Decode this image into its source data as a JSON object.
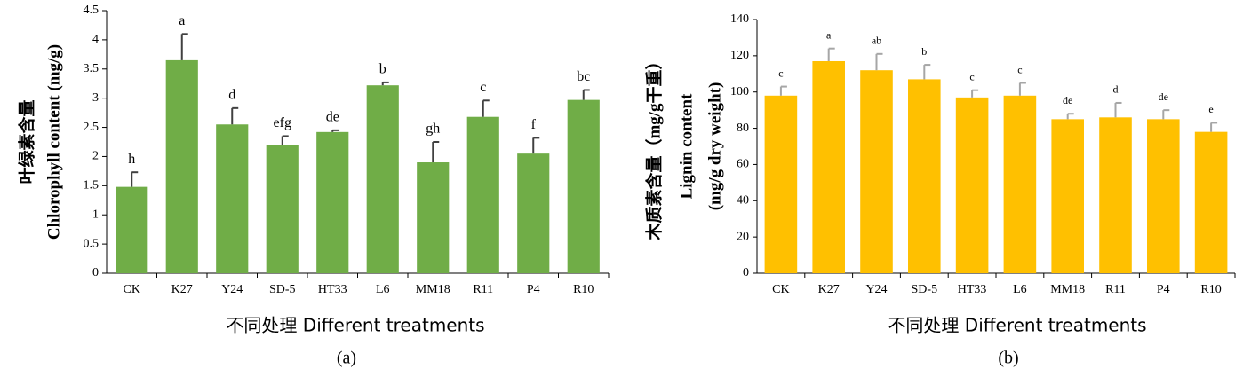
{
  "chart_data": [
    {
      "type": "bar",
      "ylabel": [
        "叶绿素含量",
        "Chlorophyll content (mg/g)"
      ],
      "xlabel": "不同处理 Different treatments",
      "caption": "(a)",
      "categories": [
        "CK",
        "K27",
        "Y24",
        "SD-5",
        "HT33",
        "L6",
        "MM18",
        "R11",
        "P4",
        "R10"
      ],
      "values": [
        1.48,
        3.65,
        2.55,
        2.2,
        2.42,
        3.22,
        1.9,
        2.68,
        2.05,
        2.97
      ],
      "errors": [
        0.25,
        0.45,
        0.28,
        0.15,
        0.03,
        0.05,
        0.35,
        0.28,
        0.27,
        0.17
      ],
      "significance": [
        "h",
        "a",
        "d",
        "efg",
        "de",
        "b",
        "gh",
        "c",
        "f",
        "bc"
      ],
      "color": "#70ad47",
      "error_color": "#404040",
      "ylim": [
        0,
        4.5
      ],
      "yticks": [
        0,
        0.5,
        1,
        1.5,
        2,
        2.5,
        3,
        3.5,
        4,
        4.5
      ]
    },
    {
      "type": "bar",
      "ylabel": [
        "木质素含量（mg/g干重）",
        "Lignin content",
        "(mg/g dry weight)"
      ],
      "xlabel": "不同处理 Different treatments",
      "caption": "(b)",
      "categories": [
        "CK",
        "K27",
        "Y24",
        "SD-5",
        "HT33",
        "L6",
        "MM18",
        "R11",
        "P4",
        "R10"
      ],
      "values": [
        98,
        117,
        112,
        107,
        97,
        98,
        85,
        86,
        85,
        78
      ],
      "errors": [
        5,
        7,
        9,
        8,
        4,
        7,
        3,
        8,
        5,
        5
      ],
      "significance": [
        "c",
        "a",
        "ab",
        "b",
        "c",
        "c",
        "de",
        "d",
        "de",
        "e"
      ],
      "color": "#ffc000",
      "error_color": "#a6a6a6",
      "ylim": [
        0,
        140
      ],
      "yticks": [
        0,
        20,
        40,
        60,
        80,
        100,
        120,
        140
      ]
    }
  ]
}
